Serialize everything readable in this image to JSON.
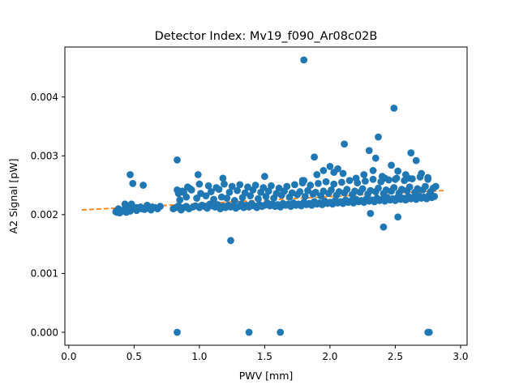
{
  "chart_data": {
    "type": "scatter",
    "title": "Detector Index: Mv19_f090_Ar08c02B",
    "xlabel": "PWV [mm]",
    "ylabel": "A2 Signal [pW]",
    "xlim": [
      -0.03,
      3.05
    ],
    "ylim": [
      -0.00022,
      0.00485
    ],
    "x_ticks": [
      0.0,
      0.5,
      1.0,
      1.5,
      2.0,
      2.5,
      3.0
    ],
    "x_tick_labels": [
      "0.0",
      "0.5",
      "1.0",
      "1.5",
      "2.0",
      "2.5",
      "3.0"
    ],
    "y_ticks": [
      0.0,
      0.001,
      0.002,
      0.003,
      0.004
    ],
    "y_tick_labels": [
      "0.000",
      "0.001",
      "0.002",
      "0.003",
      "0.004"
    ],
    "grid": false,
    "legend": "none",
    "colors": {
      "points": "#1f77b4",
      "fit": "#ff7f0e"
    },
    "series": [
      {
        "type": "scatter",
        "x": [
          0.36,
          0.38,
          0.4,
          0.42,
          0.44,
          0.45,
          0.47,
          0.5,
          0.52,
          0.55,
          0.58,
          0.6,
          0.63,
          0.66,
          0.68,
          0.7,
          0.46,
          0.48,
          0.52,
          0.56,
          0.6,
          0.64,
          0.37,
          0.41,
          0.43,
          0.39,
          0.8,
          0.82,
          0.84,
          0.86,
          0.88,
          0.9,
          0.92,
          0.95,
          0.97,
          1.0,
          1.02,
          1.04,
          1.06,
          1.08,
          1.1,
          1.12,
          1.14,
          1.16,
          1.18,
          1.2,
          1.22,
          1.24,
          1.26,
          1.28,
          1.3,
          1.32,
          1.34,
          1.36,
          1.38,
          1.4,
          1.42,
          1.44,
          1.46,
          1.48,
          1.5,
          1.52,
          1.54,
          1.56,
          1.58,
          1.6,
          1.62,
          1.64,
          1.66,
          1.68,
          1.7,
          1.72,
          1.74,
          1.76,
          1.78,
          1.8,
          1.82,
          1.84,
          1.86,
          1.88,
          1.9,
          1.92,
          1.94,
          1.96,
          1.98,
          2.0,
          2.02,
          2.04,
          2.06,
          2.08,
          2.1,
          2.12,
          2.14,
          2.16,
          2.18,
          2.2,
          2.22,
          2.24,
          2.26,
          2.28,
          2.3,
          2.32,
          2.34,
          2.36,
          2.38,
          2.4,
          2.42,
          2.44,
          2.46,
          2.48,
          2.5,
          2.52,
          2.54,
          2.56,
          2.58,
          2.6,
          2.62,
          2.64,
          2.66,
          2.68,
          2.7,
          2.72,
          2.74,
          2.76,
          2.78,
          2.8,
          0.85,
          0.9,
          0.98,
          1.05,
          1.11,
          1.17,
          1.21,
          1.27,
          1.33,
          1.39,
          1.45,
          1.51,
          1.57,
          1.63,
          1.69,
          1.75,
          1.81,
          1.87,
          1.93,
          1.99,
          2.05,
          2.11,
          2.17,
          2.23,
          2.29,
          2.35,
          2.41,
          2.47,
          2.53,
          2.59,
          2.65,
          2.71,
          2.77,
          0.88,
          0.94,
          1.01,
          1.09,
          1.15,
          1.23,
          1.29,
          1.35,
          1.41,
          1.47,
          1.53,
          1.59,
          1.65,
          1.71,
          1.77,
          1.83,
          1.89,
          1.95,
          2.01,
          2.07,
          2.13,
          2.19,
          2.25,
          2.31,
          2.37,
          2.43,
          2.49,
          2.55,
          2.61,
          2.67,
          2.73,
          2.79,
          0.83,
          0.84,
          0.87,
          0.91,
          0.93,
          1.0,
          1.07,
          1.13,
          1.19,
          1.25,
          1.31,
          1.37,
          1.43,
          1.49,
          1.55,
          1.61,
          1.67,
          1.73,
          1.79,
          1.85,
          1.91,
          1.97,
          2.03,
          2.09,
          2.15,
          2.21,
          2.27,
          2.33,
          2.39,
          2.45,
          2.51,
          2.57,
          2.63,
          2.69,
          2.75,
          2.81,
          0.83,
          0.99,
          1.18,
          1.5,
          1.8,
          1.88,
          1.9,
          1.95,
          2.0,
          2.03,
          2.06,
          2.1,
          2.2,
          2.26,
          2.3,
          2.33,
          2.35,
          2.37,
          2.4,
          2.42,
          2.47,
          2.5,
          2.52,
          2.58,
          2.6,
          2.62,
          2.66,
          2.7,
          2.75,
          1.24,
          2.31,
          2.41,
          2.52,
          0.83,
          1.38,
          1.62,
          2.75,
          2.76,
          1.8,
          2.49,
          2.11,
          0.57,
          0.49,
          0.47,
          1.79
        ],
        "y": [
          0.00205,
          0.0021,
          0.00205,
          0.00208,
          0.00204,
          0.00212,
          0.00206,
          0.0021,
          0.00207,
          0.00213,
          0.00209,
          0.00211,
          0.00208,
          0.00212,
          0.0021,
          0.00214,
          0.00215,
          0.00218,
          0.00212,
          0.0021,
          0.00216,
          0.00213,
          0.00204,
          0.00206,
          0.00218,
          0.00203,
          0.0021,
          0.00212,
          0.00215,
          0.00208,
          0.00212,
          0.00214,
          0.0021,
          0.00213,
          0.00215,
          0.00212,
          0.00216,
          0.00214,
          0.00211,
          0.00218,
          0.00215,
          0.00213,
          0.00217,
          0.0021,
          0.00214,
          0.00212,
          0.00216,
          0.00213,
          0.00215,
          0.00211,
          0.00214,
          0.00218,
          0.00212,
          0.00216,
          0.00213,
          0.00219,
          0.00215,
          0.00212,
          0.00217,
          0.00214,
          0.00216,
          0.0022,
          0.00215,
          0.00218,
          0.00214,
          0.00217,
          0.00213,
          0.00219,
          0.00216,
          0.00218,
          0.00214,
          0.0022,
          0.00216,
          0.00218,
          0.00215,
          0.00221,
          0.00217,
          0.00219,
          0.00216,
          0.00222,
          0.00218,
          0.0022,
          0.00217,
          0.00223,
          0.00219,
          0.00221,
          0.00218,
          0.00224,
          0.0022,
          0.00222,
          0.00219,
          0.00225,
          0.00221,
          0.00223,
          0.0022,
          0.00226,
          0.00222,
          0.00224,
          0.00221,
          0.00227,
          0.00223,
          0.00225,
          0.00222,
          0.00228,
          0.00224,
          0.00226,
          0.00223,
          0.00229,
          0.00225,
          0.00227,
          0.00224,
          0.0023,
          0.00226,
          0.00228,
          0.00225,
          0.00231,
          0.00227,
          0.00229,
          0.00226,
          0.00232,
          0.00228,
          0.0023,
          0.00227,
          0.00233,
          0.00229,
          0.00231,
          0.00225,
          0.0023,
          0.00228,
          0.00232,
          0.00226,
          0.0023,
          0.00228,
          0.00224,
          0.00229,
          0.00232,
          0.00227,
          0.00231,
          0.00228,
          0.00233,
          0.0023,
          0.00234,
          0.00231,
          0.00235,
          0.00232,
          0.00236,
          0.00233,
          0.00237,
          0.00234,
          0.00238,
          0.00235,
          0.00239,
          0.00236,
          0.0024,
          0.00237,
          0.00241,
          0.00238,
          0.00242,
          0.00239,
          0.00238,
          0.00242,
          0.00236,
          0.00239,
          0.00243,
          0.00238,
          0.00241,
          0.00237,
          0.00242,
          0.00238,
          0.0024,
          0.00236,
          0.0024,
          0.00237,
          0.00239,
          0.00241,
          0.00238,
          0.0024,
          0.00242,
          0.00239,
          0.00243,
          0.0024,
          0.00244,
          0.00241,
          0.00245,
          0.00242,
          0.00246,
          0.00243,
          0.00247,
          0.00244,
          0.00248,
          0.00245,
          0.00242,
          0.00236,
          0.0024,
          0.00247,
          0.00244,
          0.00252,
          0.00249,
          0.00246,
          0.00252,
          0.00248,
          0.00251,
          0.00247,
          0.0025,
          0.00246,
          0.00249,
          0.00245,
          0.00248,
          0.00251,
          0.00254,
          0.0025,
          0.00253,
          0.00256,
          0.00252,
          0.00255,
          0.00258,
          0.00254,
          0.00257,
          0.0026,
          0.00256,
          0.00259,
          0.00262,
          0.00258,
          0.00261,
          0.00264,
          0.0026,
          0.00248,
          0.00293,
          0.00268,
          0.00262,
          0.00265,
          0.00258,
          0.00298,
          0.00268,
          0.00275,
          0.00282,
          0.00272,
          0.00278,
          0.0027,
          0.00262,
          0.00268,
          0.00309,
          0.00275,
          0.00296,
          0.00332,
          0.00265,
          0.00262,
          0.00284,
          0.0026,
          0.00274,
          0.00268,
          0.00262,
          0.00305,
          0.00292,
          0.0027,
          0.00263,
          0.00156,
          0.00202,
          0.00179,
          0.00196,
          0.0,
          0.0,
          0.0,
          0.0,
          0.0,
          0.00463,
          0.00381,
          0.0032,
          0.0025,
          0.00253,
          0.00268,
          0.00258
        ]
      },
      {
        "type": "line",
        "style": "dashed",
        "x": [
          0.1,
          2.87
        ],
        "y": [
          0.00208,
          0.00241
        ]
      }
    ]
  }
}
